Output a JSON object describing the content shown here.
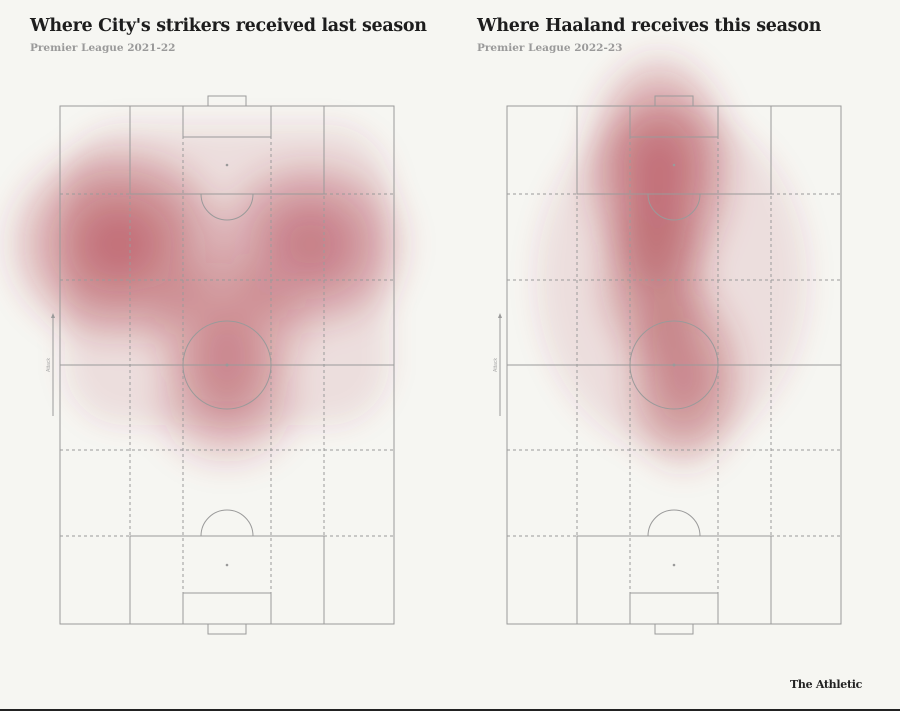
{
  "chart_data": [
    {
      "type": "heatmap",
      "title": "Where City's strikers received last season",
      "subtitle": "Premier League 2021-22",
      "direction_label": "Attack",
      "color": "#a8323f",
      "hotspots": [
        {
          "x": 12,
          "y": 77,
          "intensity": 1.0
        },
        {
          "x": 51,
          "y": 77,
          "intensity": 0.75
        },
        {
          "x": 34,
          "y": 60,
          "intensity": 0.45
        },
        {
          "x": 34,
          "y": 45,
          "intensity": 0.3
        }
      ]
    },
    {
      "type": "heatmap",
      "title": "Where Haaland receives this season",
      "subtitle": "Premier League 2022-23",
      "direction_label": "Attack",
      "color": "#a8323f",
      "hotspots": [
        {
          "x": 31,
          "y": 92,
          "intensity": 1.0
        },
        {
          "x": 36,
          "y": 50,
          "intensity": 0.6
        },
        {
          "x": 30,
          "y": 70,
          "intensity": 0.5
        }
      ]
    }
  ],
  "footer": {
    "logo": "The Athletic"
  },
  "colors": {
    "background": "#f6f6f2",
    "lines": "#9a9a9a",
    "heat": "#a8323f"
  }
}
